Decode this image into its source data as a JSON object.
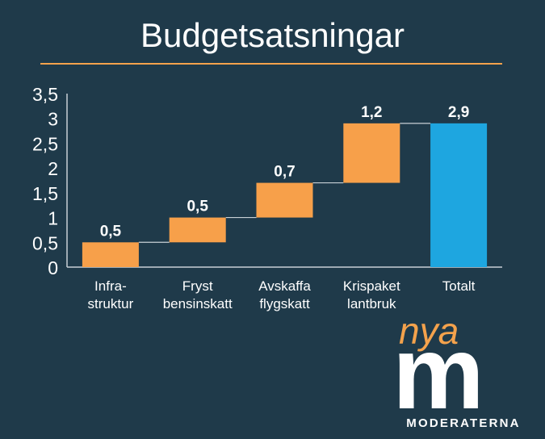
{
  "title": "Budgetsatsningar",
  "chart_data": {
    "type": "bar",
    "subtype": "waterfall",
    "categories": [
      [
        "Infra-",
        "struktur"
      ],
      [
        "Fryst",
        "bensinskatt"
      ],
      [
        "Avskaffa",
        "flygskatt"
      ],
      [
        "Krispaket",
        "lantbruk"
      ],
      [
        "Totalt"
      ]
    ],
    "values": [
      0.5,
      0.5,
      0.7,
      1.2,
      2.9
    ],
    "data_labels": [
      "0,5",
      "0,5",
      "0,7",
      "1,2",
      "2,9"
    ],
    "bar_kinds": [
      "increment",
      "increment",
      "increment",
      "increment",
      "total"
    ],
    "yticks": [
      "0",
      "0,5",
      "1",
      "1,5",
      "2",
      "2,5",
      "3",
      "3,5"
    ],
    "ylim": [
      0,
      3.5
    ],
    "colors": {
      "increment": "#f7a04a",
      "total": "#1ea6e0",
      "connector": "#c8d0d6",
      "axis": "#c8d0d6"
    },
    "grid": false
  },
  "logo": {
    "script_text": "nya",
    "main_letter": "m",
    "wordmark": "MODERATERNA"
  }
}
